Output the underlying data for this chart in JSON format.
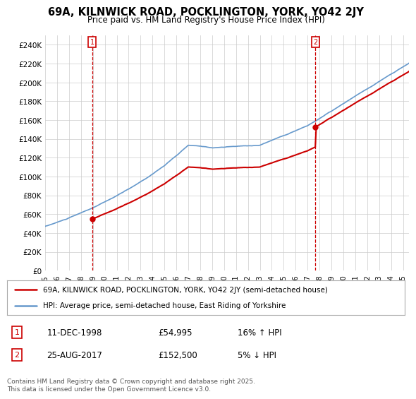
{
  "title": "69A, KILNWICK ROAD, POCKLINGTON, YORK, YO42 2JY",
  "subtitle": "Price paid vs. HM Land Registry's House Price Index (HPI)",
  "ylim": [
    0,
    250000
  ],
  "yticks": [
    0,
    20000,
    40000,
    60000,
    80000,
    100000,
    120000,
    140000,
    160000,
    180000,
    200000,
    220000,
    240000
  ],
  "xlim_start": 1995.0,
  "xlim_end": 2025.5,
  "sale1_date": 1998.95,
  "sale1_price": 54995,
  "sale1_hpi_pct": "16% ↑ HPI",
  "sale1_date_str": "11-DEC-1998",
  "sale1_price_str": "£54,995",
  "sale2_date": 2017.65,
  "sale2_price": 152500,
  "sale2_hpi_pct": "5% ↓ HPI",
  "sale2_date_str": "25-AUG-2017",
  "sale2_price_str": "£152,500",
  "line_color_property": "#cc0000",
  "line_color_hpi": "#6699cc",
  "background_color": "#ffffff",
  "grid_color": "#cccccc",
  "legend_label_property": "69A, KILNWICK ROAD, POCKLINGTON, YORK, YO42 2JY (semi-detached house)",
  "legend_label_hpi": "HPI: Average price, semi-detached house, East Riding of Yorkshire",
  "footnote": "Contains HM Land Registry data © Crown copyright and database right 2025.\nThis data is licensed under the Open Government Licence v3.0.",
  "xticks": [
    1995,
    1996,
    1997,
    1998,
    1999,
    2000,
    2001,
    2002,
    2003,
    2004,
    2005,
    2006,
    2007,
    2008,
    2009,
    2010,
    2011,
    2012,
    2013,
    2014,
    2015,
    2016,
    2017,
    2018,
    2019,
    2020,
    2021,
    2022,
    2023,
    2024,
    2025
  ]
}
